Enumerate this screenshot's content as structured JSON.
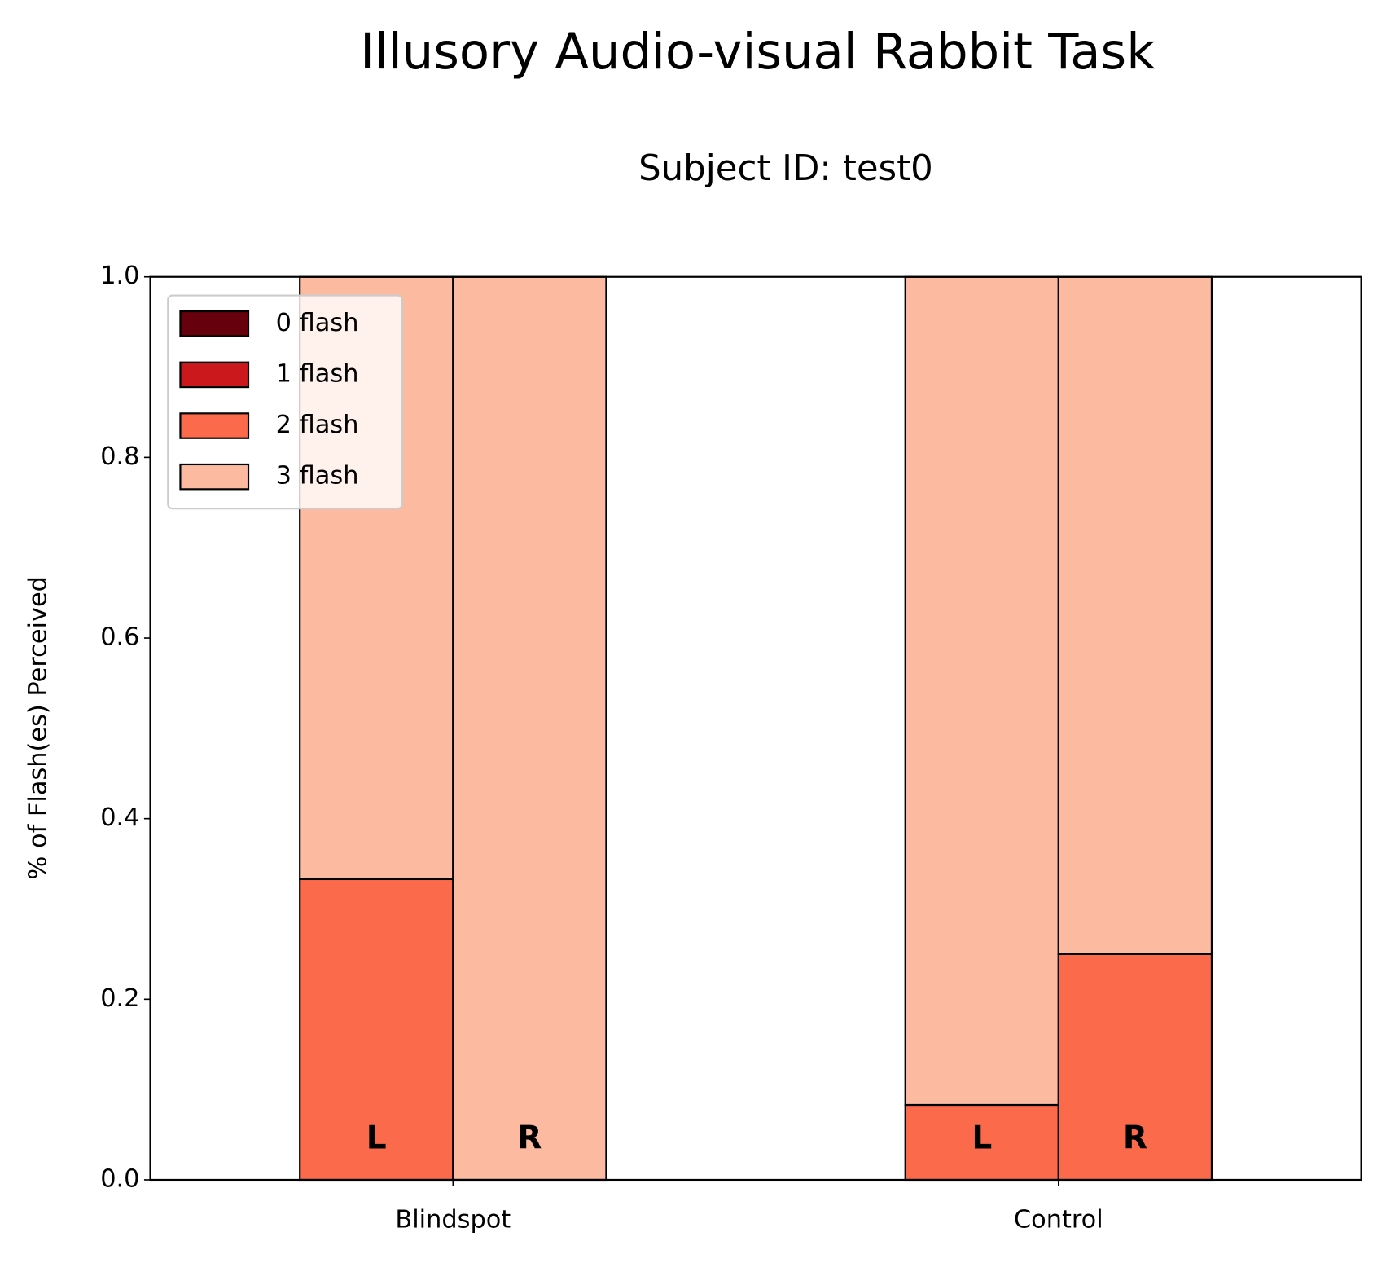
{
  "chart_data": {
    "type": "grouped_stacked_bar",
    "title": "Illusory Audio-visual Rabbit Task",
    "subtitle": "Subject ID: test0",
    "y_label": "% of Flash(es) Perceived",
    "categories": [
      "Blindspot",
      "Control"
    ],
    "sublabels": [
      "L",
      "R"
    ],
    "series": [
      {
        "name": "0 flash",
        "color": "#67000d",
        "values": [
          [
            0,
            0
          ],
          [
            0,
            0
          ]
        ]
      },
      {
        "name": "1 flash",
        "color": "#cb181d",
        "values": [
          [
            0,
            0
          ],
          [
            0,
            0
          ]
        ]
      },
      {
        "name": "2 flash",
        "color": "#fb6a4a",
        "values": [
          [
            0.333,
            0
          ],
          [
            0.083,
            0.25
          ]
        ]
      },
      {
        "name": "3 flash",
        "color": "#fcbba1",
        "values": [
          [
            0.667,
            1.0
          ],
          [
            0.917,
            0.75
          ]
        ]
      }
    ],
    "ylim": [
      0,
      1
    ],
    "yticks": [
      {
        "value": 0,
        "label": "0.0"
      },
      {
        "value": 0.2,
        "label": "0.2"
      },
      {
        "value": 0.4,
        "label": "0.4"
      },
      {
        "value": 0.6,
        "label": "0.6"
      },
      {
        "value": 0.8,
        "label": "0.8"
      },
      {
        "value": 1,
        "label": "1.0"
      }
    ],
    "legend": "upper left"
  }
}
